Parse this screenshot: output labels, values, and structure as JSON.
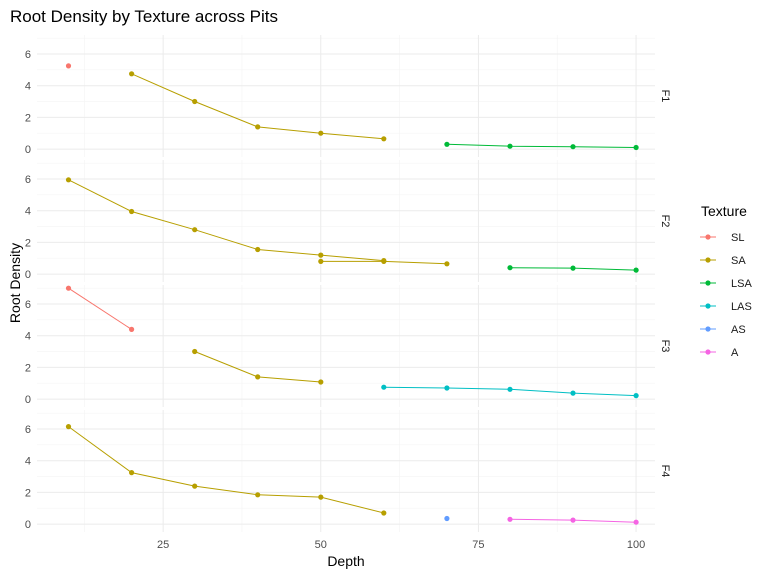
{
  "chart_data": {
    "type": "line",
    "title": "Root Density by Texture across Pits",
    "xlabel": "Depth",
    "ylabel": "Root Density",
    "xlim": [
      5,
      103
    ],
    "ylim": [
      -0.5,
      7.2
    ],
    "x_ticks": [
      25,
      50,
      75,
      100
    ],
    "y_ticks": [
      0,
      2,
      4,
      6
    ],
    "grid": true,
    "legend": {
      "title": "Texture",
      "position": "right",
      "entries": [
        {
          "name": "SL",
          "color": "#F8766D"
        },
        {
          "name": "SA",
          "color": "#B79F00"
        },
        {
          "name": "LSA",
          "color": "#00BA38"
        },
        {
          "name": "LAS",
          "color": "#00BFC4"
        },
        {
          "name": "AS",
          "color": "#619CFF"
        },
        {
          "name": "A",
          "color": "#F564E3"
        }
      ]
    },
    "panels": [
      {
        "label": "F1",
        "series": [
          {
            "texture": "SL",
            "points": [
              [
                10,
                5.25
              ]
            ]
          },
          {
            "texture": "SA",
            "points": [
              [
                20,
                4.75
              ],
              [
                30,
                3.0
              ],
              [
                40,
                1.4
              ],
              [
                50,
                1.0
              ],
              [
                60,
                0.65
              ]
            ]
          },
          {
            "texture": "LSA",
            "points": [
              [
                70,
                0.3
              ],
              [
                80,
                0.18
              ],
              [
                90,
                0.15
              ],
              [
                100,
                0.1
              ]
            ]
          }
        ]
      },
      {
        "label": "F2",
        "series": [
          {
            "texture": "SA",
            "points": [
              [
                10,
                5.95
              ],
              [
                20,
                3.95
              ],
              [
                30,
                2.8
              ],
              [
                40,
                1.55
              ],
              [
                50,
                1.2
              ],
              [
                60,
                0.85
              ]
            ]
          },
          {
            "texture": "SA",
            "points": [
              [
                50,
                0.8
              ],
              [
                60,
                0.8
              ],
              [
                70,
                0.65
              ]
            ]
          },
          {
            "texture": "LSA",
            "points": [
              [
                80,
                0.4
              ],
              [
                90,
                0.38
              ],
              [
                100,
                0.25
              ]
            ]
          }
        ]
      },
      {
        "label": "F3",
        "series": [
          {
            "texture": "SL",
            "points": [
              [
                10,
                7.0
              ],
              [
                20,
                4.4
              ]
            ]
          },
          {
            "texture": "SA",
            "points": [
              [
                30,
                3.0
              ],
              [
                40,
                1.4
              ],
              [
                50,
                1.08
              ]
            ]
          },
          {
            "texture": "LAS",
            "points": [
              [
                60,
                0.75
              ],
              [
                70,
                0.7
              ],
              [
                80,
                0.62
              ],
              [
                90,
                0.38
              ],
              [
                100,
                0.22
              ]
            ]
          }
        ]
      },
      {
        "label": "F4",
        "series": [
          {
            "texture": "SA",
            "points": [
              [
                10,
                6.15
              ],
              [
                20,
                3.25
              ],
              [
                30,
                2.4
              ],
              [
                40,
                1.85
              ],
              [
                50,
                1.7
              ],
              [
                60,
                0.7
              ]
            ]
          },
          {
            "texture": "AS",
            "points": [
              [
                70,
                0.35
              ]
            ]
          },
          {
            "texture": "A",
            "points": [
              [
                80,
                0.3
              ],
              [
                90,
                0.25
              ],
              [
                100,
                0.12
              ]
            ]
          }
        ]
      }
    ]
  }
}
